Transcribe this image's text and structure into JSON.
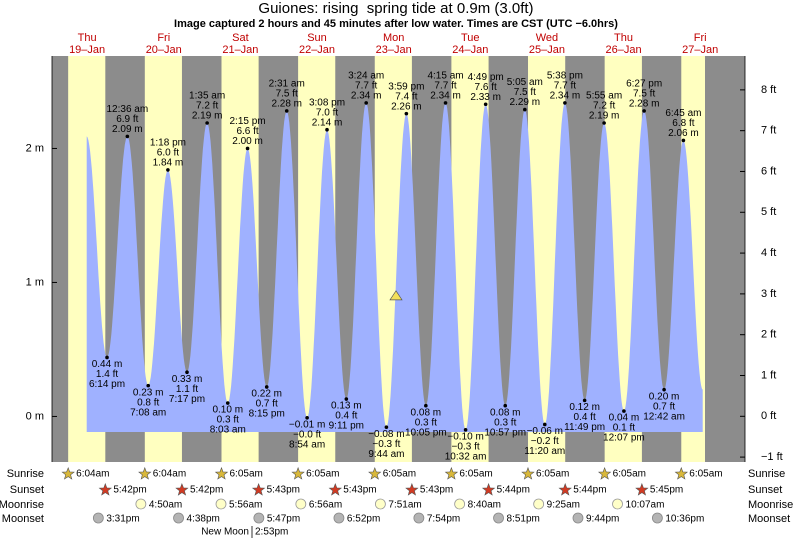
{
  "chart_data": {
    "type": "tide",
    "title": "Guiones: rising  spring tide at 0.9m (3.0ft)",
    "subtitle": "Image captured 2 hours and 45 minutes after low water. Times are CST (UTC −6.0hrs)",
    "ylim": [
      -0.34,
      2.69
    ],
    "yticks": [
      {
        "value": 0,
        "label": "0 m"
      },
      {
        "value": 1,
        "label": "1 m"
      },
      {
        "value": 2,
        "label": "2 m"
      }
    ],
    "y2lim": [
      -1.12,
      8.83
    ],
    "y2ticks": [
      {
        "value": -1,
        "label": "−1 ft"
      },
      {
        "value": 0,
        "label": "0 ft"
      },
      {
        "value": 1,
        "label": "1 ft"
      },
      {
        "value": 2,
        "label": "2 ft"
      },
      {
        "value": 3,
        "label": "3 ft"
      },
      {
        "value": 4,
        "label": "4 ft"
      },
      {
        "value": 5,
        "label": "5 ft"
      },
      {
        "value": 6,
        "label": "6 ft"
      },
      {
        "value": 7,
        "label": "7 ft"
      },
      {
        "value": 8,
        "label": "8 ft"
      }
    ],
    "current_height": 0.9,
    "row_labels": {
      "sunrise": "Sunrise",
      "sunset": "Sunset",
      "moonrise": "Moonrise",
      "moonset": "Moonset"
    },
    "moon_phase": {
      "name": "New Moon",
      "time": "2:53pm"
    },
    "days": [
      {
        "weekday": "Thu",
        "date": "19–Jan",
        "sunrise": "6:04am",
        "sunset": "5:42pm",
        "moonrise": null,
        "moonset": "3:31pm",
        "tides": {
          "times": [
            "6:14 pm"
          ],
          "values": [
            0.44
          ],
          "value_labels": [
            "0.44 m"
          ],
          "ft_labels": [
            "1.4 ft"
          ]
        }
      },
      {
        "weekday": "Fri",
        "date": "20–Jan",
        "sunrise": "6:04am",
        "sunset": "5:42pm",
        "moonrise": "4:50am",
        "moonset": "4:38pm",
        "tides": {
          "times": [
            "12:36 am",
            "7:08 am",
            "1:18 pm",
            "7:17 pm"
          ],
          "values": [
            2.09,
            0.23,
            1.84,
            0.33
          ],
          "value_labels": [
            "2.09 m",
            "0.23 m",
            "1.84 m",
            "0.33 m"
          ],
          "ft_labels": [
            "6.9 ft",
            "0.8 ft",
            "6.0 ft",
            "1.1 ft"
          ]
        }
      },
      {
        "weekday": "Sat",
        "date": "21–Jan",
        "sunrise": "6:05am",
        "sunset": "5:43pm",
        "moonrise": "5:56am",
        "moonset": "5:47pm",
        "tides": {
          "times": [
            "1:35 am",
            "8:03 am",
            "2:15 pm",
            "8:15 pm"
          ],
          "values": [
            2.19,
            0.1,
            2.0,
            0.22
          ],
          "value_labels": [
            "2.19 m",
            "0.10 m",
            "2.00 m",
            "0.22 m"
          ],
          "ft_labels": [
            "7.2 ft",
            "0.3 ft",
            "6.6 ft",
            "0.7 ft"
          ]
        }
      },
      {
        "weekday": "Sun",
        "date": "22–Jan",
        "sunrise": "6:05am",
        "sunset": "5:43pm",
        "moonrise": "6:56am",
        "moonset": "6:52pm",
        "tides": {
          "times": [
            "2:31 am",
            "8:54 am",
            "3:08 pm",
            "9:11 pm"
          ],
          "values": [
            2.28,
            -0.01,
            2.14,
            0.13
          ],
          "value_labels": [
            "2.28 m",
            "−0.01 m",
            "2.14 m",
            "0.13 m"
          ],
          "ft_labels": [
            "7.5 ft",
            "−0.0 ft",
            "7.0 ft",
            "0.4 ft"
          ]
        }
      },
      {
        "weekday": "Mon",
        "date": "23–Jan",
        "sunrise": "6:05am",
        "sunset": "5:43pm",
        "moonrise": "7:51am",
        "moonset": "7:54pm",
        "tides": {
          "times": [
            "3:24 am",
            "9:44 am",
            "3:59 pm",
            "10:05 pm"
          ],
          "values": [
            2.34,
            -0.08,
            2.26,
            0.08
          ],
          "value_labels": [
            "2.34 m",
            "−0.08 m",
            "2.26 m",
            "0.08 m"
          ],
          "ft_labels": [
            "7.7 ft",
            "−0.3 ft",
            "7.4 ft",
            "0.3 ft"
          ]
        }
      },
      {
        "weekday": "Tue",
        "date": "24–Jan",
        "sunrise": "6:05am",
        "sunset": "5:44pm",
        "moonrise": "8:40am",
        "moonset": "8:51pm",
        "tides": {
          "times": [
            "4:15 am",
            "10:32 am",
            "4:49 pm",
            "10:57 pm"
          ],
          "values": [
            2.34,
            -0.1,
            2.33,
            0.08
          ],
          "value_labels": [
            "2.34 m",
            "−0.10 m",
            "2.33 m",
            "0.08 m"
          ],
          "ft_labels": [
            "7.7 ft",
            "−0.3 ft",
            "7.6 ft",
            "0.3 ft"
          ]
        }
      },
      {
        "weekday": "Wed",
        "date": "25–Jan",
        "sunrise": "6:05am",
        "sunset": "5:44pm",
        "moonrise": "9:25am",
        "moonset": "9:44pm",
        "tides": {
          "times": [
            "5:05 am",
            "11:20 am",
            "5:38 pm",
            "11:49 pm"
          ],
          "values": [
            2.29,
            -0.06,
            2.34,
            0.12
          ],
          "value_labels": [
            "2.29 m",
            "−0.06 m",
            "2.34 m",
            "0.12 m"
          ],
          "ft_labels": [
            "7.5 ft",
            "−0.2 ft",
            "7.7 ft",
            "0.4 ft"
          ]
        }
      },
      {
        "weekday": "Thu",
        "date": "26–Jan",
        "sunrise": "6:05am",
        "sunset": "5:45pm",
        "moonrise": "10:07am",
        "moonset": "10:36pm",
        "tides": {
          "times": [
            "5:55 am",
            "12:07 pm",
            "6:27 pm"
          ],
          "values": [
            2.19,
            0.04,
            2.28
          ],
          "value_labels": [
            "2.19 m",
            "0.04 m",
            "2.28 m"
          ],
          "ft_labels": [
            "7.2 ft",
            "0.1 ft",
            "7.5 ft"
          ]
        }
      },
      {
        "weekday": "Fri",
        "date": "27–Jan",
        "sunrise": "6:05am",
        "sunset": null,
        "moonrise": null,
        "moonset": null,
        "tides": {
          "times": [
            "12:42 am",
            "6:45 am"
          ],
          "values": [
            0.2,
            2.06
          ],
          "value_labels": [
            "0.20 m",
            "2.06 m"
          ],
          "ft_labels": [
            "0.7 ft",
            "6.8 ft"
          ]
        }
      }
    ]
  }
}
